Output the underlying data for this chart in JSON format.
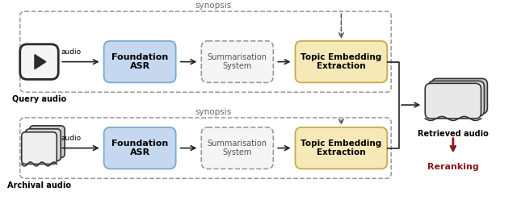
{
  "bg_color": "#ffffff",
  "asr_color": "#c5d8f0",
  "asr_edge": "#7aaace",
  "summ_color": "#f5f5f5",
  "summ_edge": "#999999",
  "topic_color": "#f5e9b8",
  "topic_edge": "#c8a84b",
  "reranking_color": "#8b1a1a",
  "synopsis_color": "#666666",
  "arrow_color": "#222222",
  "dashed_arrow_color": "#555555",
  "query_label": "Query audio",
  "archival_label": "Archival audio",
  "retrieved_label": "Retrieved audio",
  "reranking_label": "Reranking",
  "synopsis_label": "synopsis",
  "asr_label": "Foundation\nASR",
  "summ_label": "Summarisation\nSystem",
  "topic_label": "Topic Embedding\nExtraction",
  "audio_label": "audio"
}
